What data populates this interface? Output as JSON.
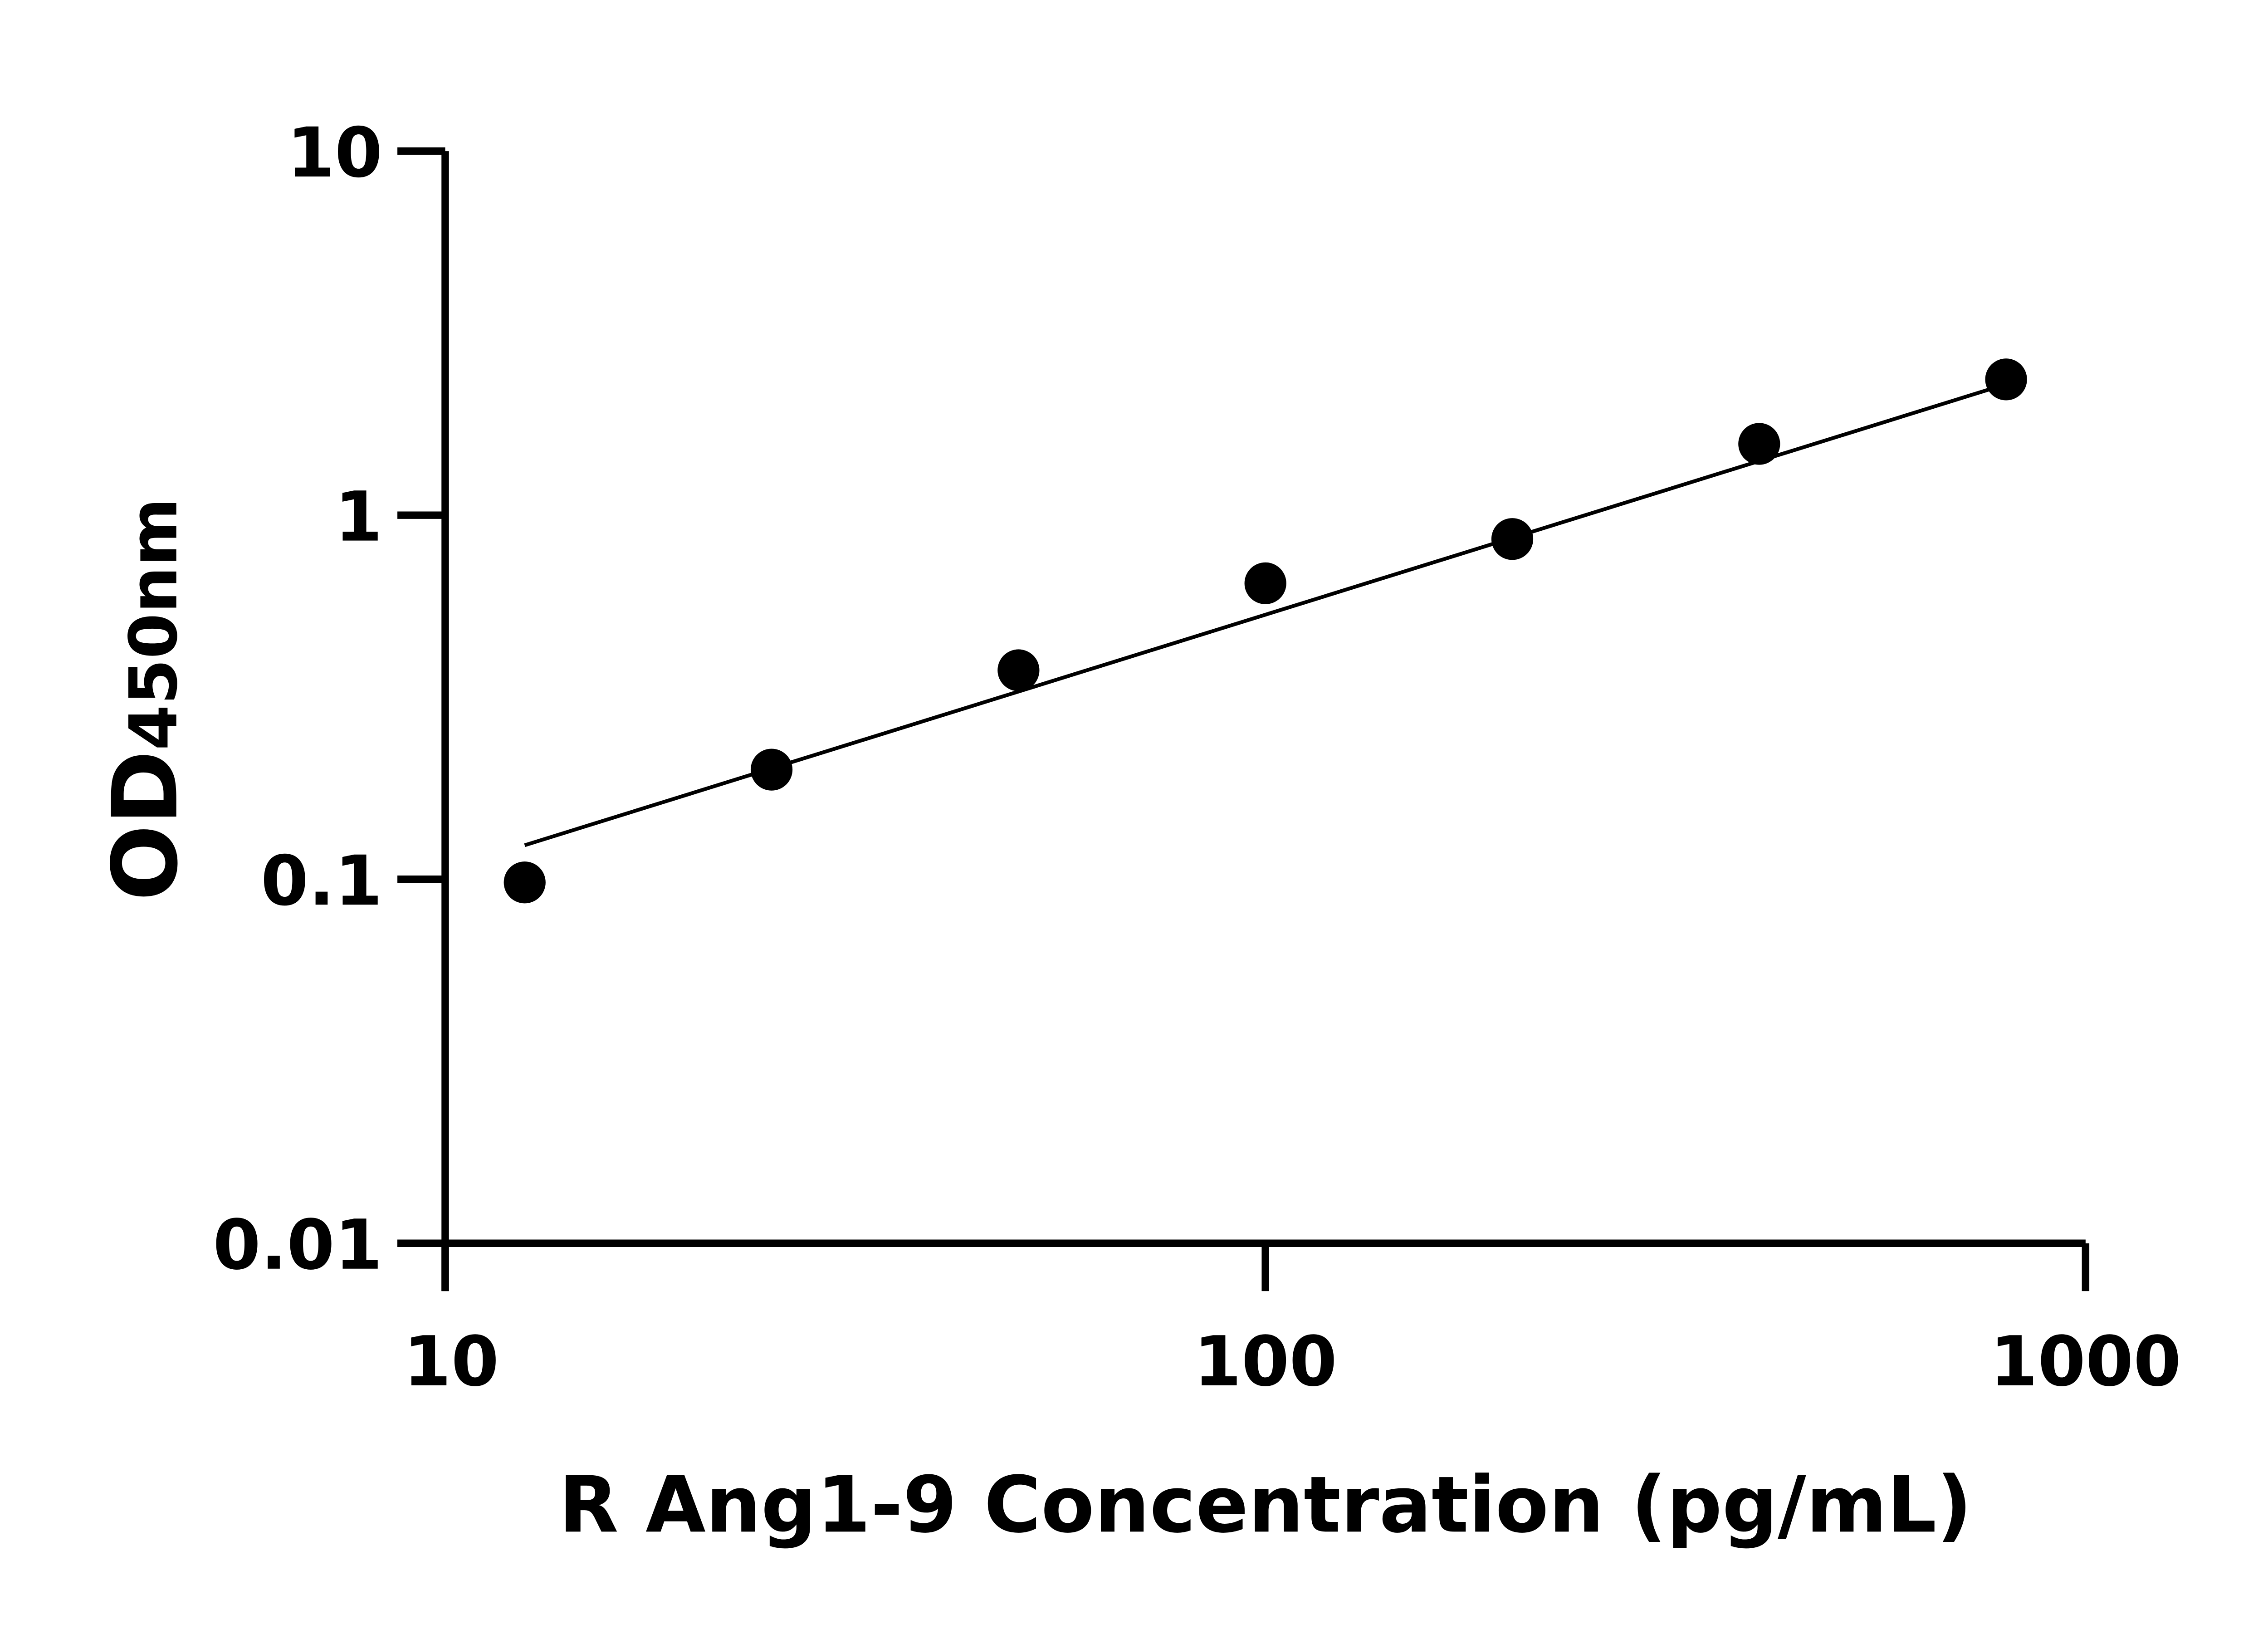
{
  "chart_data": {
    "type": "scatter",
    "title": "",
    "xlabel": "R Ang1-9 Concentration (pg/mL)",
    "ylabel_main": "OD",
    "ylabel_sub": "450nm",
    "x_scale": "log",
    "y_scale": "log",
    "xlim": [
      10,
      1000
    ],
    "ylim": [
      0.01,
      10
    ],
    "x_ticks": [
      10,
      100,
      1000
    ],
    "x_tick_labels": [
      "10",
      "100",
      "1000"
    ],
    "y_ticks": [
      0.01,
      0.1,
      1,
      10
    ],
    "y_tick_labels": [
      "0.01",
      "0.1",
      "1",
      "10"
    ],
    "grid": false,
    "legend": "none",
    "point_color": "#000000",
    "series": [
      {
        "x": [
          12.5,
          25,
          50,
          100,
          200,
          400,
          800
        ],
        "y": [
          0.098,
          0.2,
          0.375,
          0.65,
          0.86,
          1.57,
          2.36
        ]
      }
    ],
    "fit_line": {
      "x": [
        12.5,
        800
      ],
      "y": [
        0.124,
        2.29
      ]
    }
  }
}
